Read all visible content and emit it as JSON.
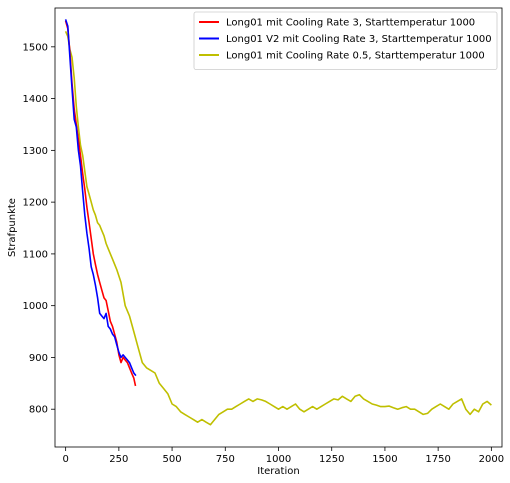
{
  "chart_data": {
    "type": "line",
    "xlabel": "Iteration",
    "ylabel": "Strafpunkte",
    "xlim": [
      -50,
      2050
    ],
    "ylim": [
      727,
      1575
    ],
    "xticks": [
      0,
      250,
      500,
      750,
      1000,
      1250,
      1500,
      1750,
      2000
    ],
    "yticks": [
      800,
      900,
      1000,
      1100,
      1200,
      1300,
      1400,
      1500
    ],
    "legend_position": "top-right",
    "series": [
      {
        "name": "Long01 mit Cooling Rate 3, Starttemperatur 1000",
        "color": "#ff0000",
        "x": [
          0,
          10,
          20,
          30,
          40,
          50,
          60,
          70,
          80,
          90,
          100,
          110,
          120,
          130,
          140,
          150,
          160,
          170,
          180,
          190,
          200,
          210,
          220,
          230,
          240,
          250,
          260,
          270,
          280,
          290,
          300,
          310,
          320,
          328
        ],
        "y": [
          1550,
          1535,
          1490,
          1430,
          1380,
          1350,
          1320,
          1290,
          1255,
          1225,
          1190,
          1160,
          1130,
          1100,
          1080,
          1060,
          1045,
          1030,
          1015,
          1010,
          990,
          970,
          960,
          945,
          930,
          905,
          890,
          900,
          895,
          890,
          880,
          870,
          860,
          845
        ]
      },
      {
        "name": "Long01 V2 mit Cooling Rate 3, Starttemperatur 1000",
        "color": "#0000ff",
        "x": [
          0,
          10,
          20,
          30,
          40,
          50,
          60,
          70,
          80,
          90,
          100,
          110,
          120,
          130,
          140,
          150,
          160,
          170,
          180,
          190,
          200,
          210,
          220,
          230,
          240,
          250,
          260,
          270,
          280,
          290,
          300,
          310,
          320,
          330
        ],
        "y": [
          1553,
          1540,
          1480,
          1420,
          1360,
          1345,
          1300,
          1270,
          1220,
          1175,
          1140,
          1110,
          1075,
          1060,
          1040,
          1015,
          985,
          980,
          975,
          985,
          960,
          955,
          945,
          940,
          925,
          910,
          900,
          905,
          900,
          895,
          890,
          880,
          870,
          865
        ]
      },
      {
        "name": "Long01 mit Cooling Rate 0.5, Starttemperatur 1000",
        "color": "#bfbf00",
        "x": [
          0,
          10,
          20,
          30,
          40,
          50,
          60,
          70,
          80,
          90,
          100,
          110,
          120,
          130,
          140,
          150,
          160,
          170,
          180,
          190,
          200,
          220,
          240,
          260,
          280,
          300,
          320,
          340,
          360,
          380,
          400,
          420,
          440,
          460,
          480,
          500,
          520,
          540,
          560,
          580,
          600,
          620,
          640,
          660,
          680,
          700,
          720,
          740,
          760,
          780,
          800,
          820,
          840,
          860,
          880,
          900,
          920,
          940,
          960,
          980,
          1000,
          1020,
          1040,
          1060,
          1080,
          1100,
          1120,
          1140,
          1160,
          1180,
          1200,
          1220,
          1240,
          1260,
          1280,
          1300,
          1320,
          1340,
          1360,
          1380,
          1400,
          1420,
          1440,
          1460,
          1480,
          1500,
          1520,
          1540,
          1560,
          1580,
          1600,
          1620,
          1640,
          1660,
          1680,
          1700,
          1720,
          1740,
          1760,
          1780,
          1800,
          1820,
          1840,
          1860,
          1880,
          1900,
          1920,
          1940,
          1960,
          1980,
          2000
        ],
        "y": [
          1530,
          1520,
          1495,
          1480,
          1440,
          1385,
          1345,
          1310,
          1290,
          1260,
          1230,
          1215,
          1200,
          1185,
          1175,
          1160,
          1155,
          1145,
          1135,
          1120,
          1110,
          1090,
          1070,
          1045,
          1000,
          980,
          950,
          920,
          890,
          880,
          875,
          870,
          850,
          840,
          830,
          810,
          805,
          795,
          790,
          785,
          780,
          775,
          780,
          775,
          770,
          780,
          790,
          795,
          800,
          800,
          805,
          810,
          815,
          820,
          815,
          820,
          818,
          815,
          810,
          805,
          800,
          805,
          800,
          805,
          810,
          800,
          795,
          800,
          805,
          800,
          805,
          810,
          815,
          820,
          818,
          825,
          820,
          815,
          825,
          828,
          820,
          815,
          810,
          808,
          805,
          805,
          806,
          803,
          800,
          803,
          805,
          800,
          800,
          795,
          790,
          792,
          800,
          805,
          810,
          805,
          800,
          810,
          815,
          820,
          800,
          790,
          800,
          795,
          810,
          815,
          808
        ]
      }
    ]
  }
}
